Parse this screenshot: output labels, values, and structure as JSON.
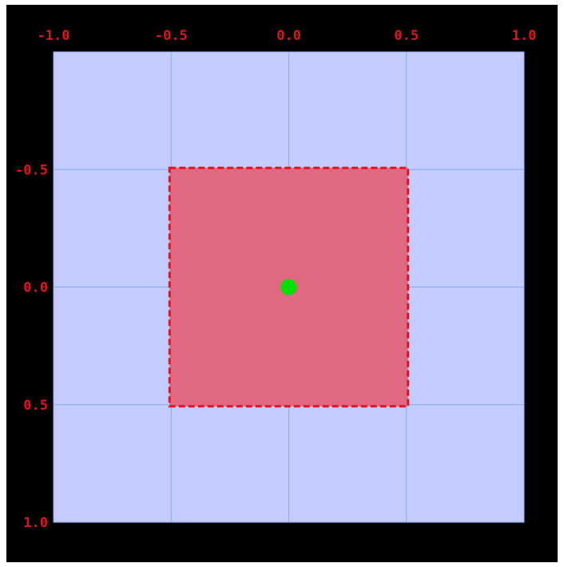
{
  "x_ticks": [
    "-1.0",
    "-0.5",
    "0.0",
    "0.5",
    "1.0"
  ],
  "y_ticks": [
    "-0.5",
    "0.0",
    "0.5",
    "1.0"
  ],
  "x_tick_values": [
    -1.0,
    -0.5,
    0.0,
    0.5,
    1.0
  ],
  "y_tick_values": [
    -0.5,
    0.0,
    0.5,
    1.0
  ],
  "domain": {
    "x_range": [
      -1.0,
      1.0
    ],
    "y_range": [
      -1.0,
      1.0
    ],
    "y_axis_direction": "down"
  },
  "region": {
    "x_range": [
      -0.5,
      0.5
    ],
    "y_range": [
      -0.5,
      0.5
    ]
  },
  "point": {
    "x": 0.0,
    "y": 0.0
  },
  "colors": {
    "background": "#000000",
    "domain_fill": "#c4cbff",
    "grid": "#8aa8f0",
    "region_fill": "#e06880",
    "region_border": "#e8101a",
    "point": "#00e000",
    "tick_label": "#e01515"
  }
}
